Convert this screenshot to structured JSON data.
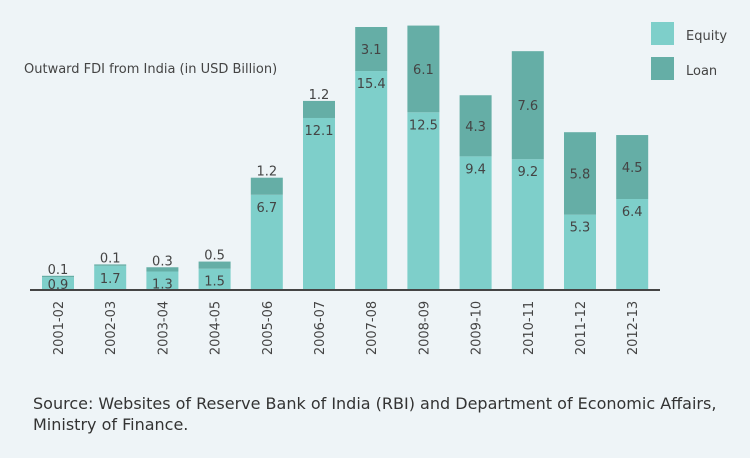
{
  "chart_data": {
    "type": "bar",
    "stacked": true,
    "title": "Outward FDI from India (in USD Billion)",
    "categories": [
      "2001-02",
      "2002-03",
      "2003-04",
      "2004-05",
      "2005-06",
      "2006-07",
      "2007-08",
      "2008-09",
      "2009-10",
      "2010-11",
      "2011-12",
      "2012-13"
    ],
    "series": [
      {
        "name": "Equity",
        "color": "#7ecfca",
        "values": [
          0.9,
          1.7,
          1.3,
          1.5,
          6.7,
          12.1,
          15.4,
          12.5,
          9.4,
          9.2,
          5.3,
          6.4
        ]
      },
      {
        "name": "Loan",
        "color": "#65aea6",
        "values": [
          0.1,
          0.1,
          0.3,
          0.5,
          1.2,
          1.2,
          3.1,
          6.1,
          4.3,
          7.6,
          5.8,
          4.5
        ]
      }
    ],
    "ylim": [
      0,
      18.5
    ],
    "grid": false,
    "legend": "top-right"
  },
  "source": "Source: Websites of Reserve Bank of India (RBI) and Department of Economic Affairs, Ministry of Finance."
}
